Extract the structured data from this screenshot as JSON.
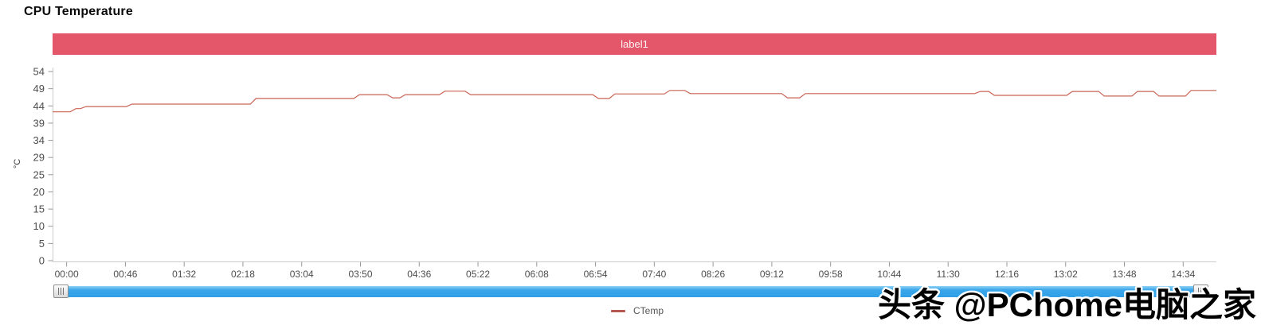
{
  "page": {
    "title": "CPU Temperature"
  },
  "banner": {
    "label": "label1"
  },
  "legend": {
    "series_label": "CTemp"
  },
  "watermark": {
    "text": "头条 @PChome电脑之家"
  },
  "colors": {
    "banner": "#e4566a",
    "series_line": "#c96455",
    "legend_marker": "#b4574e",
    "axis_line": "#cccccc",
    "tick": "#999999",
    "tick_label": "#4d4d4d",
    "scrollbar_blue": "#2f9fe6"
  },
  "scrollbar": {
    "left_grip_icon": "grip-vertical-lines",
    "right_grip_icon": "grip-vertical-lines"
  },
  "chart_data": {
    "type": "line",
    "title": "CPU Temperature",
    "xlabel": "",
    "ylabel": "°C",
    "ylim": [
      0,
      54
    ],
    "y_tick_labels": [
      "0",
      "5",
      "10",
      "15",
      "20",
      "25",
      "29",
      "34",
      "39",
      "44",
      "49",
      "54"
    ],
    "xlim_s": [
      0,
      911
    ],
    "x_first_tick_offset_s": 11,
    "x_tick_interval_s": 46,
    "x_tick_labels": [
      "00:00",
      "00:46",
      "01:32",
      "02:18",
      "03:04",
      "03:50",
      "04:36",
      "05:22",
      "06:08",
      "06:54",
      "07:40",
      "08:26",
      "09:12",
      "09:58",
      "10:44",
      "11:30",
      "12:16",
      "13:02",
      "13:48",
      "14:34"
    ],
    "grid": false,
    "legend_position": "bottom-center",
    "series": [
      {
        "name": "CTemp",
        "color": "#c96455",
        "points_time_s_temp_c": [
          [
            0,
            42.5
          ],
          [
            16,
            43.4
          ],
          [
            24,
            44.0
          ],
          [
            60,
            44.7
          ],
          [
            157,
            46.3
          ],
          [
            238,
            47.4
          ],
          [
            264,
            46.5
          ],
          [
            274,
            47.4
          ],
          [
            305,
            48.4
          ],
          [
            325,
            47.4
          ],
          [
            425,
            46.3
          ],
          [
            438,
            47.6
          ],
          [
            481,
            48.6
          ],
          [
            497,
            47.7
          ],
          [
            573,
            46.5
          ],
          [
            587,
            47.7
          ],
          [
            724,
            48.3
          ],
          [
            735,
            47.2
          ],
          [
            796,
            48.3
          ],
          [
            821,
            47.0
          ],
          [
            847,
            48.3
          ],
          [
            864,
            47.0
          ],
          [
            889,
            48.6
          ]
        ]
      }
    ]
  }
}
